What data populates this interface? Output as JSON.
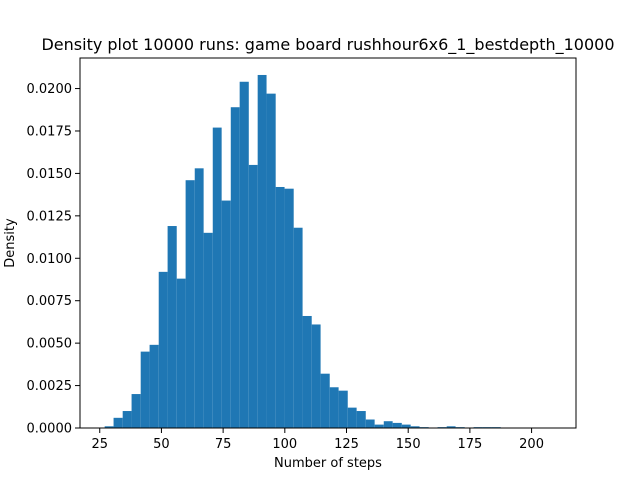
{
  "chart_data": {
    "type": "bar",
    "title": "Density plot 10000 runs: game board rushhour6x6_1_bestdepth_10000",
    "xlabel": "Number of steps",
    "ylabel": "Density",
    "xlim": [
      17,
      218
    ],
    "ylim": [
      0,
      0.0218
    ],
    "xticks": [
      25,
      50,
      75,
      100,
      125,
      150,
      175,
      200
    ],
    "xtick_labels": [
      "25",
      "50",
      "75",
      "100",
      "125",
      "150",
      "175",
      "200"
    ],
    "yticks": [
      0.0,
      0.0025,
      0.005,
      0.0075,
      0.01,
      0.0125,
      0.015,
      0.0175,
      0.02
    ],
    "ytick_labels": [
      "0.0000",
      "0.0025",
      "0.0050",
      "0.0075",
      "0.0100",
      "0.0125",
      "0.0150",
      "0.0175",
      "0.0200"
    ],
    "grid": false,
    "bar_color": "#1f77b4",
    "bin_edges": [
      27,
      30.6,
      34.3,
      37.9,
      41.6,
      45.2,
      48.9,
      52.5,
      56.2,
      59.8,
      63.5,
      67.1,
      70.8,
      74.4,
      78.1,
      81.7,
      85.4,
      89.0,
      92.6,
      96.3,
      99.9,
      103.6,
      107.2,
      110.9,
      114.5,
      118.2,
      121.8,
      125.5,
      129.1,
      132.8,
      136.4,
      140.1,
      143.7,
      147.4,
      151.0,
      154.6,
      158.3,
      161.9,
      165.6,
      169.2,
      172.9,
      176.5,
      180.2,
      183.8,
      187.5,
      191.1,
      194.8,
      198.4,
      202.1,
      205.7,
      209.4
    ],
    "values": [
      0.0001,
      0.0006,
      0.001,
      0.002,
      0.0045,
      0.0049,
      0.0092,
      0.0119,
      0.0088,
      0.0146,
      0.0153,
      0.0115,
      0.0177,
      0.0134,
      0.0189,
      0.0204,
      0.0155,
      0.0208,
      0.0197,
      0.0142,
      0.0141,
      0.0118,
      0.0066,
      0.0061,
      0.0032,
      0.0024,
      0.0022,
      0.0012,
      0.001,
      0.0005,
      0.0002,
      0.0004,
      0.0003,
      0.0002,
      0.0001,
      5e-05,
      0,
      5e-05,
      0.0001,
      5e-05,
      0,
      5e-05,
      5e-05,
      5e-05,
      0,
      0,
      0,
      0,
      0,
      0
    ]
  }
}
